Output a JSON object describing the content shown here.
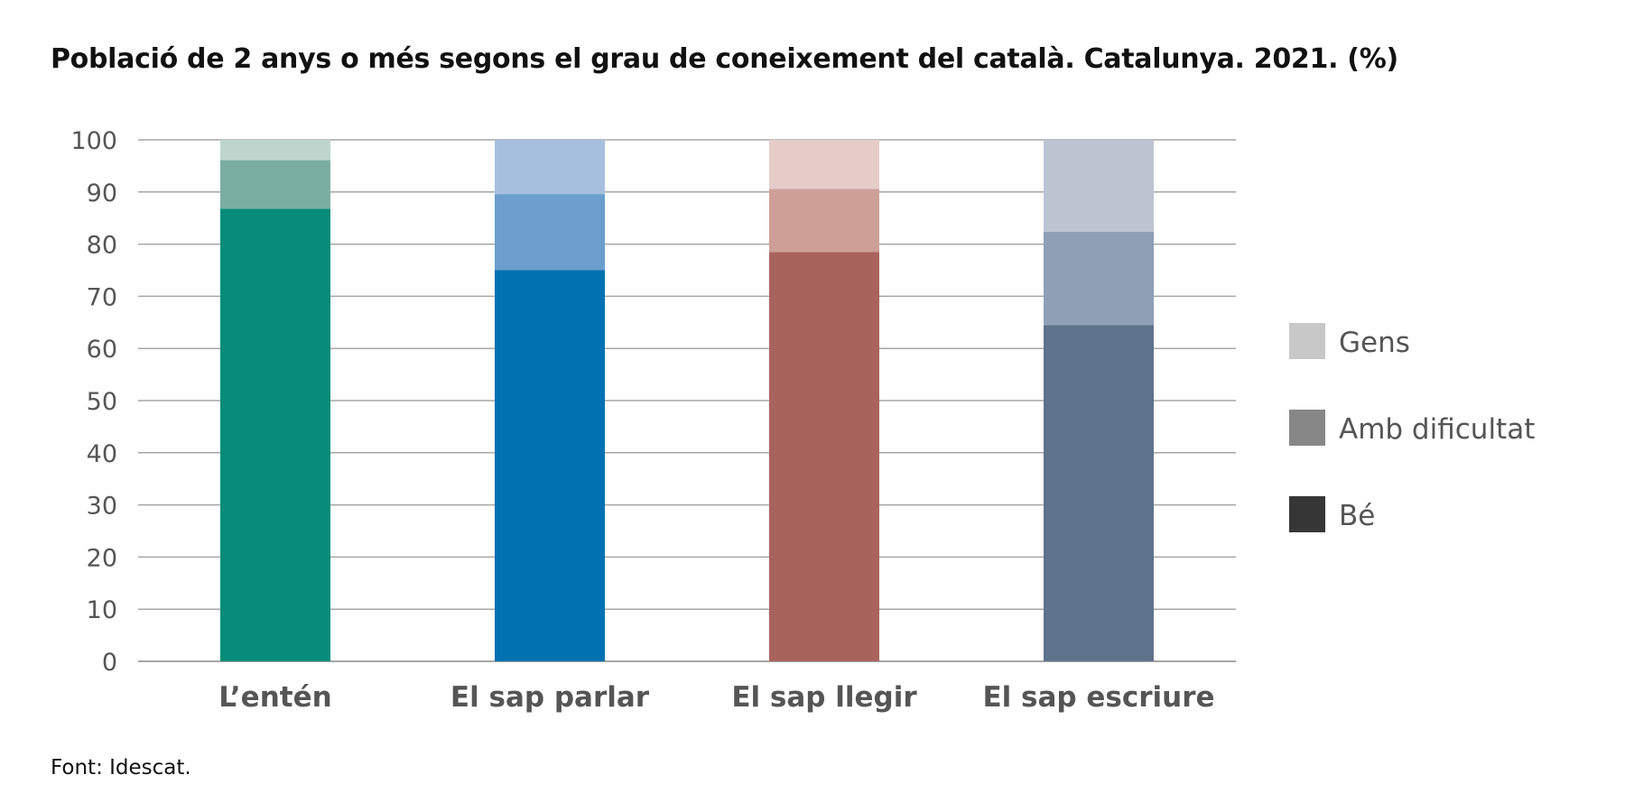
{
  "chart_data": {
    "type": "bar",
    "stacked": true,
    "title": "Població de 2 anys o més segons el grau de coneixement del català. Catalunya. 2021. (%)",
    "source": "Font: Idescat.",
    "categories": [
      "L’entén",
      "El sap parlar",
      "El sap llegir",
      "El sap escriure"
    ],
    "series": [
      {
        "name": "Bé",
        "values": [
          86.8,
          75.0,
          78.5,
          64.5
        ],
        "colors": [
          "#068c78",
          "#0071b1",
          "#a9635d",
          "#5f728b"
        ]
      },
      {
        "name": "Amb dificultat",
        "values": [
          9.3,
          14.6,
          12.1,
          17.9
        ],
        "colors": [
          "#7baea3",
          "#6b9ecd",
          "#cd9f97",
          "#8f9fb5"
        ]
      },
      {
        "name": "Gens",
        "values": [
          3.9,
          10.4,
          9.4,
          17.6
        ],
        "colors": [
          "#bdd5cd",
          "#a7bfdf",
          "#e6ccc8",
          "#bcc3d1"
        ]
      }
    ],
    "legend": [
      {
        "label": "Gens",
        "color": "#c8c8c8"
      },
      {
        "label": "Amb dificultat",
        "color": "#878787"
      },
      {
        "label": "Bé",
        "color": "#363636"
      }
    ],
    "y_ticks": [
      0,
      10,
      20,
      30,
      40,
      50,
      60,
      70,
      80,
      90,
      100
    ],
    "ylim": [
      0,
      100
    ],
    "grid": true,
    "legend_position": "right"
  }
}
